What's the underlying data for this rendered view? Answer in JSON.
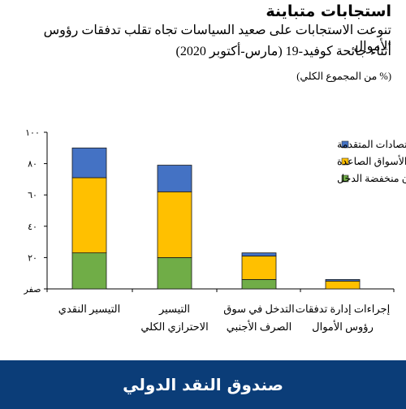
{
  "title": "استجابات متباينة",
  "subtitle_line1": "تنوعت الاستجابات على صعيد السياسات تجاه تقلب تدفقات رؤوس الأموال",
  "subtitle_line2": "أثناء جائحة كوفيد-19 (مارس-أكتوبر 2020)",
  "unit_note": "(% من المجموع الكلي)",
  "footer": "صندوق النقد الدولي",
  "colors": {
    "advanced": "#4472C4",
    "emerging": "#FFC000",
    "low_income": "#70AD47"
  },
  "chart_data": {
    "type": "bar",
    "stacked": true,
    "categories": [
      [
        "التيسير النقدي"
      ],
      [
        "التيسير",
        "الاحترازي الكلي"
      ],
      [
        "التدخل في سوق",
        "الصرف الأجنبي"
      ],
      [
        "إجراءات إدارة تدفقات",
        "رؤوس الأموال"
      ]
    ],
    "series": [
      {
        "name": "البلدان منخفضة الدخل",
        "key": "low_income",
        "values": [
          23,
          20,
          6,
          0
        ]
      },
      {
        "name": "الأسواق الصاعدة",
        "key": "emerging",
        "values": [
          48,
          42,
          15,
          5
        ]
      },
      {
        "name": "الاقتصادات المتقدمة",
        "key": "advanced",
        "values": [
          19,
          17,
          2,
          1
        ]
      }
    ],
    "legend_order": [
      "advanced",
      "emerging",
      "low_income"
    ],
    "legend_position": "top-right",
    "ylim": [
      0,
      100
    ],
    "yticks": [
      {
        "value": 0,
        "label": "صفر"
      },
      {
        "value": 20,
        "label": "٢٠"
      },
      {
        "value": 40,
        "label": "٤٠"
      },
      {
        "value": 60,
        "label": "٦٠"
      },
      {
        "value": 80,
        "label": "٨٠"
      },
      {
        "value": 100,
        "label": "١٠٠"
      }
    ]
  }
}
